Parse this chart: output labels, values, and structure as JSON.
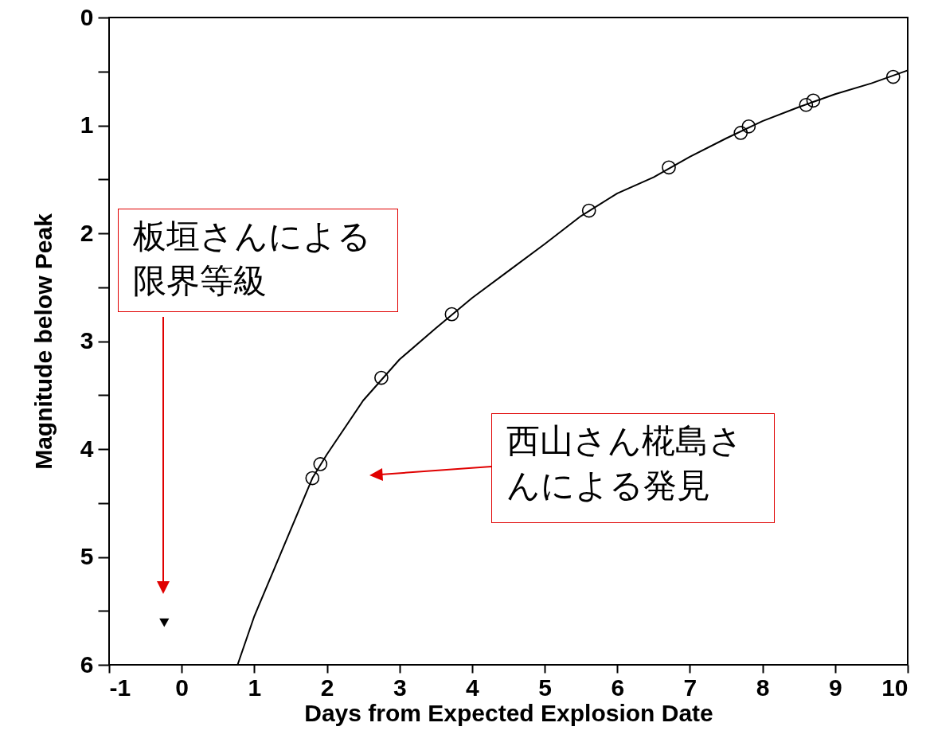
{
  "chart_data": {
    "type": "scatter",
    "xlabel": "Days from Expected Explosion Date",
    "ylabel": "Magnitude below Peak",
    "xlim": [
      -1,
      10
    ],
    "ylim": [
      6,
      0
    ],
    "xticks": [
      -1,
      0,
      1,
      2,
      3,
      4,
      5,
      6,
      7,
      8,
      9,
      10
    ],
    "yticks": [
      0,
      {
        "value": 0.5,
        "label": null
      },
      1,
      {
        "value": 1.5,
        "label": null
      },
      2,
      {
        "value": 2.5,
        "label": null
      },
      3,
      {
        "value": 3.5,
        "label": null
      },
      4,
      {
        "value": 4.5,
        "label": null
      },
      5,
      {
        "value": 5.5,
        "label": null
      },
      6
    ],
    "grid": false,
    "annotations": [
      "板垣さんによる限界等級",
      "西山さん椛島さんによる発見"
    ],
    "series": [
      {
        "type": "line",
        "color": "#000000",
        "line_style": "solid",
        "marker": "none",
        "x": [
          0.77,
          1.0,
          1.25,
          1.5,
          1.8,
          2.0,
          2.5,
          3.0,
          3.5,
          4.0,
          4.5,
          5.0,
          5.5,
          6.0,
          6.5,
          7.0,
          7.5,
          8.0,
          8.5,
          9.0,
          9.5,
          10.0
        ],
        "values": [
          6.0,
          5.55,
          5.15,
          4.75,
          4.27,
          4.05,
          3.55,
          3.17,
          2.88,
          2.6,
          2.35,
          2.1,
          1.84,
          1.63,
          1.48,
          1.29,
          1.12,
          0.96,
          0.83,
          0.71,
          0.61,
          0.49
        ]
      },
      {
        "color": "#000000",
        "marker": "circle",
        "x": [
          1.8,
          1.91,
          2.75,
          3.72,
          5.61,
          6.71,
          7.7,
          7.81,
          8.6,
          8.7,
          9.8
        ],
        "values": [
          4.27,
          4.14,
          3.34,
          2.75,
          1.79,
          1.39,
          1.07,
          1.01,
          0.81,
          0.77,
          0.55
        ]
      },
      {
        "color": "#000000",
        "marker": "triangle",
        "x": [
          -0.24
        ],
        "values": [
          5.61
        ]
      }
    ]
  }
}
